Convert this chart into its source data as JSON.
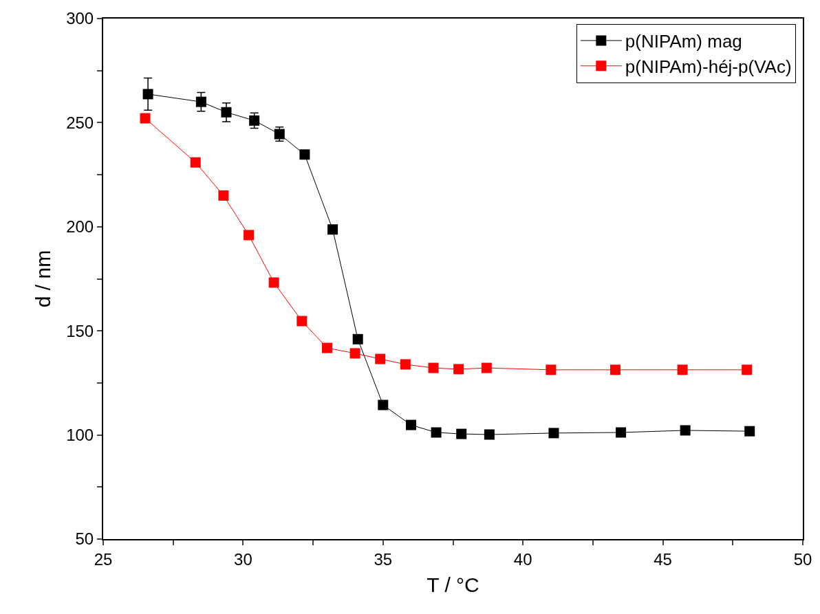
{
  "chart_data": {
    "type": "line",
    "xlabel": "T / °C",
    "ylabel": "d / nm",
    "xlim": [
      25,
      50
    ],
    "xticks": [
      25,
      {
        "value": 27.5,
        "label": null
      },
      30,
      {
        "value": 32.5,
        "label": null
      },
      35,
      {
        "value": 37.5,
        "label": null
      },
      40,
      {
        "value": 42.5,
        "label": null
      },
      45,
      {
        "value": 47.5,
        "label": null
      },
      50
    ],
    "ylim": [
      50,
      300
    ],
    "yticks": [
      50,
      {
        "value": 75,
        "label": null
      },
      100,
      {
        "value": 125,
        "label": null
      },
      150,
      {
        "value": 175,
        "label": null
      },
      200,
      {
        "value": 225,
        "label": null
      },
      250,
      {
        "value": 275,
        "label": null
      },
      300
    ],
    "grid": false,
    "legend": "top right",
    "marker": "square",
    "line_style": "solid",
    "series": [
      {
        "name": "p(NIPAm) mag",
        "color": "#000000",
        "x": [
          26.6,
          28.5,
          29.4,
          30.4,
          31.3,
          32.2,
          33.2,
          34.1,
          35.0,
          36.0,
          36.9,
          37.8,
          38.8,
          41.1,
          43.5,
          45.8,
          48.1
        ],
        "values": [
          263.7,
          260,
          255,
          251,
          244.5,
          234.7,
          198.7,
          146,
          114.4,
          104.8,
          101.2,
          100.5,
          100.2,
          100.9,
          101.2,
          102.2,
          101.8
        ],
        "errors": [
          7.7,
          4.5,
          4.5,
          3.7,
          3.4,
          null,
          null,
          null,
          null,
          null,
          null,
          null,
          null,
          null,
          null,
          null,
          null
        ]
      },
      {
        "name": "p(NIPAm)-héj-p(VAc)",
        "color": "#ff0000",
        "x": [
          26.5,
          28.3,
          29.3,
          30.2,
          31.1,
          32.1,
          33.0,
          34.0,
          34.9,
          35.8,
          36.8,
          37.7,
          38.7,
          41.0,
          43.3,
          45.7,
          48.0
        ],
        "values": [
          252.1,
          230.9,
          215,
          196,
          173.2,
          154.7,
          141.8,
          139.2,
          136.5,
          133.9,
          132.2,
          131.6,
          132.2,
          131.3,
          131.3,
          131.3,
          131.3
        ]
      }
    ]
  }
}
